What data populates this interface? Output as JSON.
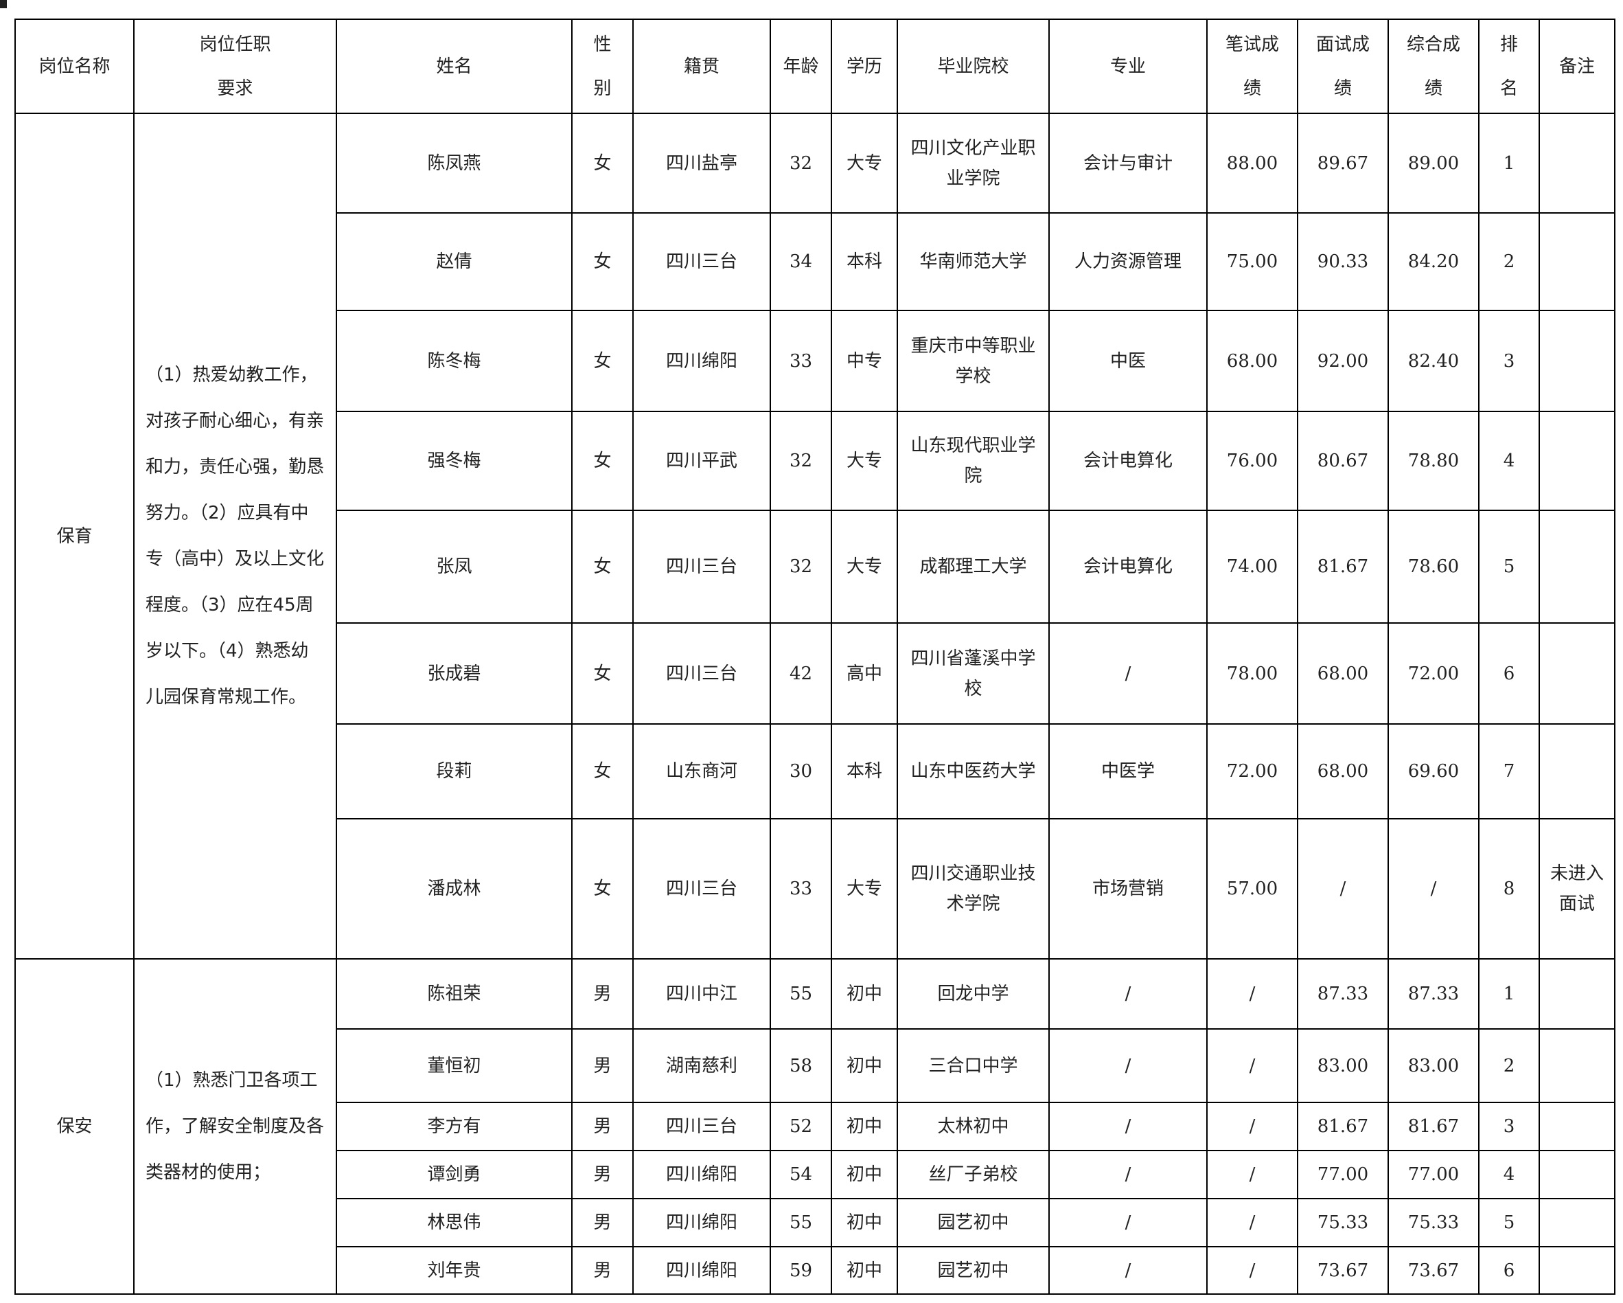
{
  "headers": [
    "岗位名称",
    "岗位任职\n要求",
    "姓名",
    "性\n别",
    "籍贯",
    "年龄",
    "学历",
    "毕业院校",
    "专业",
    "笔试成\n绩",
    "面试成\n绩",
    "综合成\n绩",
    "排\n名",
    "备注"
  ],
  "groups": [
    {
      "position": "保育",
      "requirements": "（1）热爱幼教工作，对孩子耐心细心，有亲和力，责任心强，勤恳努力。（2）应具有中专（高中）及以上文化程度。（3）应在45周岁以下。（4）熟悉幼儿园保育常规工作。",
      "rows": [
        [
          "陈凤燕",
          "女",
          "四川盐亭",
          "32",
          "大专",
          "四川文化产业职业学院",
          "会计与审计",
          "88.00",
          "89.67",
          "89.00",
          "1",
          ""
        ],
        [
          "赵倩",
          "女",
          "四川三台",
          "34",
          "本科",
          "华南师范大学",
          "人力资源管理",
          "75.00",
          "90.33",
          "84.20",
          "2",
          ""
        ],
        [
          "陈冬梅",
          "女",
          "四川绵阳",
          "33",
          "中专",
          "重庆市中等职业学校",
          "中医",
          "68.00",
          "92.00",
          "82.40",
          "3",
          ""
        ],
        [
          "强冬梅",
          "女",
          "四川平武",
          "32",
          "大专",
          "山东现代职业学院",
          "会计电算化",
          "76.00",
          "80.67",
          "78.80",
          "4",
          ""
        ],
        [
          "张凤",
          "女",
          "四川三台",
          "32",
          "大专",
          "成都理工大学",
          "会计电算化",
          "74.00",
          "81.67",
          "78.60",
          "5",
          ""
        ],
        [
          "张成碧",
          "女",
          "四川三台",
          "42",
          "高中",
          "四川省蓬溪中学校",
          "/",
          "78.00",
          "68.00",
          "72.00",
          "6",
          ""
        ],
        [
          "段莉",
          "女",
          "山东商河",
          "30",
          "本科",
          "山东中医药大学",
          "中医学",
          "72.00",
          "68.00",
          "69.60",
          "7",
          ""
        ],
        [
          "潘成林",
          "女",
          "四川三台",
          "33",
          "大专",
          "四川交通职业技术学院",
          "市场营销",
          "57.00",
          "/",
          "/",
          "8",
          "未进入面试"
        ]
      ]
    },
    {
      "position": "保安",
      "requirements": "（1）熟悉门卫各项工作，了解安全制度及各类器材的使用；",
      "rows": [
        [
          "陈祖荣",
          "男",
          "四川中江",
          "55",
          "初中",
          "回龙中学",
          "/",
          "/",
          "87.33",
          "87.33",
          "1",
          ""
        ],
        [
          "董恒初",
          "男",
          "湖南慈利",
          "58",
          "初中",
          "三合口中学",
          "/",
          "/",
          "83.00",
          "83.00",
          "2",
          ""
        ],
        [
          "李方有",
          "男",
          "四川三台",
          "52",
          "初中",
          "太林初中",
          "/",
          "/",
          "81.67",
          "81.67",
          "3",
          ""
        ],
        [
          "谭剑勇",
          "男",
          "四川绵阳",
          "54",
          "初中",
          "丝厂子弟校",
          "/",
          "/",
          "77.00",
          "77.00",
          "4",
          ""
        ],
        [
          "林思伟",
          "男",
          "四川绵阳",
          "55",
          "初中",
          "园艺初中",
          "/",
          "/",
          "75.33",
          "75.33",
          "5",
          ""
        ],
        [
          "刘年贵",
          "男",
          "四川绵阳",
          "59",
          "初中",
          "园艺初中",
          "/",
          "/",
          "73.67",
          "73.67",
          "6",
          ""
        ]
      ]
    }
  ]
}
